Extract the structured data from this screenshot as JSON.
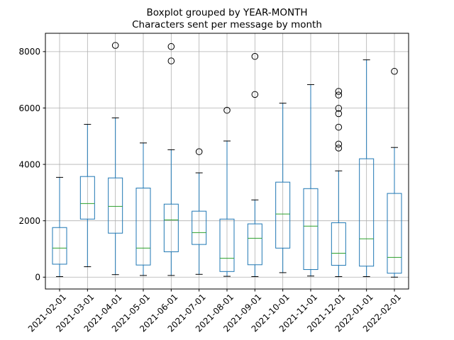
{
  "chart_data": {
    "type": "box",
    "title": "Boxplot grouped by YEAR-MONTH",
    "subtitle": "Characters sent per message by month",
    "xlabel": "",
    "ylabel": "",
    "ylim": [
      -420,
      8650
    ],
    "yticks": [
      0,
      2000,
      4000,
      6000,
      8000
    ],
    "grid": true,
    "colors": {
      "box": "#1f77b4",
      "median": "#2ca02c",
      "grid": "#b0b0b0",
      "flier": "#000000"
    },
    "categories": [
      "2021-02-01",
      "2021-03-01",
      "2021-04-01",
      "2021-05-01",
      "2021-06-01",
      "2021-07-01",
      "2021-08-01",
      "2021-09-01",
      "2021-10-01",
      "2021-11-01",
      "2021-12-01",
      "2022-01-01",
      "2022-02-01"
    ],
    "boxes": [
      {
        "whisker_low": 20,
        "q1": 460,
        "median": 1030,
        "q3": 1760,
        "whisker_high": 3540,
        "fliers": []
      },
      {
        "whisker_low": 370,
        "q1": 2060,
        "median": 2610,
        "q3": 3570,
        "whisker_high": 5420,
        "fliers": []
      },
      {
        "whisker_low": 90,
        "q1": 1560,
        "median": 2510,
        "q3": 3520,
        "whisker_high": 5650,
        "fliers": [
          8220
        ]
      },
      {
        "whisker_low": 60,
        "q1": 430,
        "median": 1030,
        "q3": 3160,
        "whisker_high": 4760,
        "fliers": []
      },
      {
        "whisker_low": 60,
        "q1": 900,
        "median": 2030,
        "q3": 2590,
        "whisker_high": 4520,
        "fliers": [
          7670,
          8180
        ]
      },
      {
        "whisker_low": 100,
        "q1": 1160,
        "median": 1580,
        "q3": 2340,
        "whisker_high": 3700,
        "fliers": [
          4450
        ]
      },
      {
        "whisker_low": 30,
        "q1": 200,
        "median": 670,
        "q3": 2060,
        "whisker_high": 4830,
        "fliers": [
          5920
        ]
      },
      {
        "whisker_low": 20,
        "q1": 440,
        "median": 1380,
        "q3": 1890,
        "whisker_high": 2740,
        "fliers": [
          6480,
          7830
        ]
      },
      {
        "whisker_low": 160,
        "q1": 1030,
        "median": 2240,
        "q3": 3370,
        "whisker_high": 6170,
        "fliers": []
      },
      {
        "whisker_low": 40,
        "q1": 270,
        "median": 1810,
        "q3": 3140,
        "whisker_high": 6830,
        "fliers": []
      },
      {
        "whisker_low": 20,
        "q1": 420,
        "median": 850,
        "q3": 1930,
        "whisker_high": 3770,
        "fliers": [
          4580,
          4720,
          5320,
          5800,
          5990,
          6460,
          6590
        ]
      },
      {
        "whisker_low": 20,
        "q1": 390,
        "median": 1360,
        "q3": 4200,
        "whisker_high": 7710,
        "fliers": []
      },
      {
        "whisker_low": 0,
        "q1": 140,
        "median": 700,
        "q3": 2970,
        "whisker_high": 4600,
        "fliers": [
          7300
        ]
      }
    ]
  }
}
